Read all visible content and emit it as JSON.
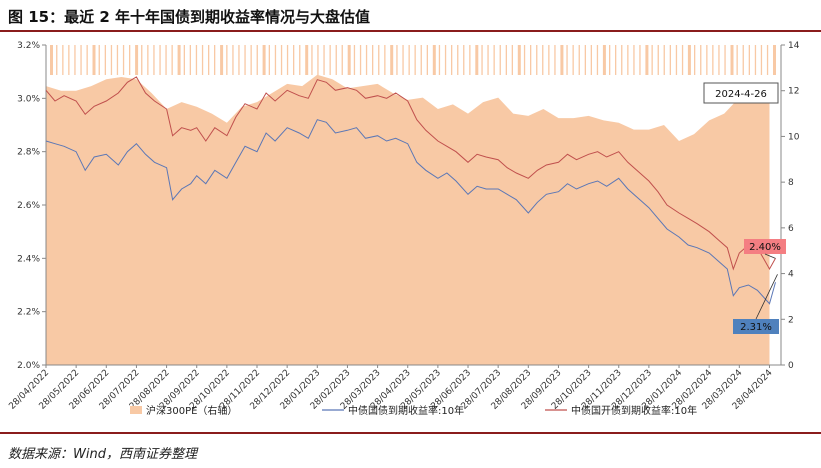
{
  "figure": {
    "title": "图 15：最近 2 年十年国债到期收益率情况与大盘估值",
    "source": "数据来源：Wind，西南证券整理"
  },
  "colors": {
    "pe_fill": "#F8C9A5",
    "cgb": "#5B77B6",
    "cdb": "#C0504D",
    "label_cdb_bg": "#F47E82",
    "label_cgb_bg": "#4F81BD",
    "date_box_border": "#555555"
  },
  "chart_data": {
    "type": "line",
    "x_tick_labels": [
      "28/04/2022",
      "28/05/2022",
      "28/06/2022",
      "28/07/2022",
      "28/08/2022",
      "28/09/2022",
      "28/10/2022",
      "28/11/2022",
      "28/12/2022",
      "28/01/2023",
      "28/02/2023",
      "28/03/2023",
      "28/04/2023",
      "28/05/2023",
      "28/06/2023",
      "28/07/2023",
      "28/08/2023",
      "28/09/2023",
      "28/10/2023",
      "28/11/2023",
      "28/12/2023",
      "28/01/2024",
      "28/02/2024",
      "28/03/2024",
      "28/04/2024"
    ],
    "y_left": {
      "ticks": [
        "2.0%",
        "2.2%",
        "2.4%",
        "2.6%",
        "2.8%",
        "3.0%",
        "3.2%"
      ],
      "min": 2.0,
      "max": 3.2
    },
    "y_right": {
      "ticks": [
        "0",
        "2",
        "4",
        "6",
        "8",
        "10",
        "12",
        "14"
      ],
      "min": 0,
      "max": 14
    },
    "series": [
      {
        "name": "沪深300PE（右轴）",
        "type": "area",
        "axis": "right",
        "points": [
          [
            0,
            12.2
          ],
          [
            0.5,
            12.0
          ],
          [
            1,
            12.0
          ],
          [
            1.5,
            12.2
          ],
          [
            2,
            12.5
          ],
          [
            2.5,
            12.6
          ],
          [
            3,
            12.5
          ],
          [
            3.5,
            11.9
          ],
          [
            4,
            11.2
          ],
          [
            4.5,
            11.5
          ],
          [
            5,
            11.3
          ],
          [
            5.5,
            11.0
          ],
          [
            6,
            10.6
          ],
          [
            6.5,
            11.3
          ],
          [
            7,
            11.5
          ],
          [
            7.5,
            11.9
          ],
          [
            8,
            12.3
          ],
          [
            8.5,
            12.2
          ],
          [
            9,
            12.7
          ],
          [
            9.5,
            12.5
          ],
          [
            10,
            12.1
          ],
          [
            10.5,
            12.2
          ],
          [
            11,
            12.3
          ],
          [
            11.5,
            11.9
          ],
          [
            12,
            11.6
          ],
          [
            12.5,
            11.7
          ],
          [
            13,
            11.2
          ],
          [
            13.5,
            11.4
          ],
          [
            14,
            11.0
          ],
          [
            14.5,
            11.5
          ],
          [
            15,
            11.7
          ],
          [
            15.5,
            11.0
          ],
          [
            16,
            10.9
          ],
          [
            16.5,
            11.2
          ],
          [
            17,
            10.8
          ],
          [
            17.5,
            10.8
          ],
          [
            18,
            10.9
          ],
          [
            18.5,
            10.7
          ],
          [
            19,
            10.6
          ],
          [
            19.5,
            10.3
          ],
          [
            20,
            10.3
          ],
          [
            20.5,
            10.5
          ],
          [
            21,
            9.8
          ],
          [
            21.5,
            10.1
          ],
          [
            22,
            10.7
          ],
          [
            22.5,
            11.0
          ],
          [
            23,
            11.7
          ],
          [
            23.5,
            11.6
          ],
          [
            24,
            11.8
          ]
        ]
      },
      {
        "name": "中债国债到期收益率:10年",
        "type": "line",
        "axis": "left",
        "points": [
          [
            0,
            2.84
          ],
          [
            0.3,
            2.83
          ],
          [
            0.6,
            2.82
          ],
          [
            1,
            2.8
          ],
          [
            1.3,
            2.73
          ],
          [
            1.6,
            2.78
          ],
          [
            2,
            2.79
          ],
          [
            2.4,
            2.75
          ],
          [
            2.7,
            2.8
          ],
          [
            3,
            2.83
          ],
          [
            3.3,
            2.79
          ],
          [
            3.6,
            2.76
          ],
          [
            4,
            2.74
          ],
          [
            4.2,
            2.62
          ],
          [
            4.5,
            2.66
          ],
          [
            4.8,
            2.68
          ],
          [
            5,
            2.71
          ],
          [
            5.3,
            2.68
          ],
          [
            5.6,
            2.73
          ],
          [
            6,
            2.7
          ],
          [
            6.3,
            2.76
          ],
          [
            6.6,
            2.82
          ],
          [
            7,
            2.8
          ],
          [
            7.3,
            2.87
          ],
          [
            7.6,
            2.84
          ],
          [
            8,
            2.89
          ],
          [
            8.4,
            2.87
          ],
          [
            8.7,
            2.85
          ],
          [
            9,
            2.92
          ],
          [
            9.3,
            2.91
          ],
          [
            9.6,
            2.87
          ],
          [
            10,
            2.88
          ],
          [
            10.3,
            2.89
          ],
          [
            10.6,
            2.85
          ],
          [
            11,
            2.86
          ],
          [
            11.3,
            2.84
          ],
          [
            11.6,
            2.85
          ],
          [
            12,
            2.83
          ],
          [
            12.3,
            2.76
          ],
          [
            12.6,
            2.73
          ],
          [
            13,
            2.7
          ],
          [
            13.3,
            2.72
          ],
          [
            13.6,
            2.69
          ],
          [
            14,
            2.64
          ],
          [
            14.3,
            2.67
          ],
          [
            14.6,
            2.66
          ],
          [
            15,
            2.66
          ],
          [
            15.3,
            2.64
          ],
          [
            15.6,
            2.62
          ],
          [
            16,
            2.57
          ],
          [
            16.3,
            2.61
          ],
          [
            16.6,
            2.64
          ],
          [
            17,
            2.65
          ],
          [
            17.3,
            2.68
          ],
          [
            17.6,
            2.66
          ],
          [
            18,
            2.68
          ],
          [
            18.3,
            2.69
          ],
          [
            18.6,
            2.67
          ],
          [
            19,
            2.7
          ],
          [
            19.3,
            2.66
          ],
          [
            19.6,
            2.63
          ],
          [
            20,
            2.59
          ],
          [
            20.3,
            2.55
          ],
          [
            20.6,
            2.51
          ],
          [
            21,
            2.48
          ],
          [
            21.3,
            2.45
          ],
          [
            21.6,
            2.44
          ],
          [
            22,
            2.42
          ],
          [
            22.3,
            2.39
          ],
          [
            22.6,
            2.36
          ],
          [
            22.8,
            2.26
          ],
          [
            23,
            2.29
          ],
          [
            23.3,
            2.3
          ],
          [
            23.6,
            2.28
          ],
          [
            24,
            2.23
          ],
          [
            24.2,
            2.31
          ]
        ]
      },
      {
        "name": "中债国开债到期收益率:10年",
        "type": "line",
        "axis": "left",
        "points": [
          [
            0,
            3.03
          ],
          [
            0.3,
            2.99
          ],
          [
            0.6,
            3.01
          ],
          [
            1,
            2.99
          ],
          [
            1.3,
            2.94
          ],
          [
            1.6,
            2.97
          ],
          [
            2,
            2.99
          ],
          [
            2.4,
            3.02
          ],
          [
            2.7,
            3.06
          ],
          [
            3,
            3.08
          ],
          [
            3.3,
            3.02
          ],
          [
            3.6,
            2.99
          ],
          [
            4,
            2.96
          ],
          [
            4.2,
            2.86
          ],
          [
            4.5,
            2.89
          ],
          [
            4.8,
            2.88
          ],
          [
            5,
            2.89
          ],
          [
            5.3,
            2.84
          ],
          [
            5.6,
            2.89
          ],
          [
            6,
            2.86
          ],
          [
            6.3,
            2.93
          ],
          [
            6.6,
            2.98
          ],
          [
            7,
            2.96
          ],
          [
            7.3,
            3.02
          ],
          [
            7.6,
            2.99
          ],
          [
            8,
            3.03
          ],
          [
            8.4,
            3.01
          ],
          [
            8.7,
            3.0
          ],
          [
            9,
            3.07
          ],
          [
            9.3,
            3.06
          ],
          [
            9.6,
            3.03
          ],
          [
            10,
            3.04
          ],
          [
            10.3,
            3.03
          ],
          [
            10.6,
            3.0
          ],
          [
            11,
            3.01
          ],
          [
            11.3,
            3.0
          ],
          [
            11.6,
            3.02
          ],
          [
            12,
            2.99
          ],
          [
            12.3,
            2.92
          ],
          [
            12.6,
            2.88
          ],
          [
            13,
            2.84
          ],
          [
            13.3,
            2.82
          ],
          [
            13.6,
            2.8
          ],
          [
            14,
            2.76
          ],
          [
            14.3,
            2.79
          ],
          [
            14.6,
            2.78
          ],
          [
            15,
            2.77
          ],
          [
            15.3,
            2.74
          ],
          [
            15.6,
            2.72
          ],
          [
            16,
            2.7
          ],
          [
            16.3,
            2.73
          ],
          [
            16.6,
            2.75
          ],
          [
            17,
            2.76
          ],
          [
            17.3,
            2.79
          ],
          [
            17.6,
            2.77
          ],
          [
            18,
            2.79
          ],
          [
            18.3,
            2.8
          ],
          [
            18.6,
            2.78
          ],
          [
            19,
            2.8
          ],
          [
            19.3,
            2.76
          ],
          [
            19.6,
            2.73
          ],
          [
            20,
            2.69
          ],
          [
            20.3,
            2.65
          ],
          [
            20.6,
            2.6
          ],
          [
            21,
            2.57
          ],
          [
            21.3,
            2.55
          ],
          [
            21.6,
            2.53
          ],
          [
            22,
            2.5
          ],
          [
            22.3,
            2.47
          ],
          [
            22.6,
            2.44
          ],
          [
            22.8,
            2.36
          ],
          [
            23,
            2.42
          ],
          [
            23.3,
            2.45
          ],
          [
            23.6,
            2.44
          ],
          [
            24,
            2.36
          ],
          [
            24.2,
            2.4
          ]
        ]
      }
    ],
    "annotations": {
      "date": "2024-4-26",
      "cdb_last": "2.40%",
      "cgb_last": "2.31%"
    },
    "legend_position": "bottom",
    "grid": false
  }
}
